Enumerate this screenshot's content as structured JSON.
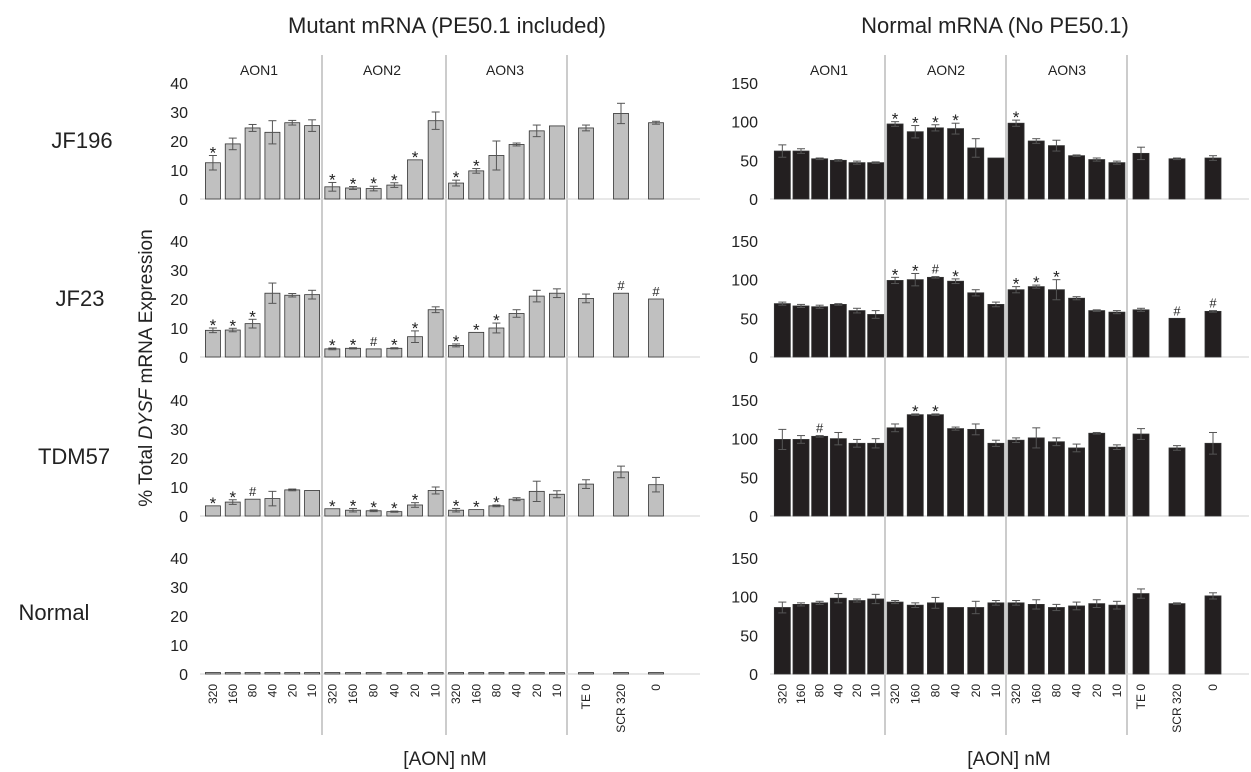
{
  "titles": {
    "left": "Mutant mRNA (PE50.1 included)",
    "right": "Normal mRNA (No PE50.1)"
  },
  "ylabel": {
    "prefix": "% Total ",
    "italic": "DYSF",
    "suffix": " mRNA Expression"
  },
  "xlabel": "[AON] nM",
  "row_labels": [
    "JF196",
    "JF23",
    "TDM57",
    "Normal"
  ],
  "group_labels": [
    "AON1",
    "AON2",
    "AON3",
    ""
  ],
  "x_ticks": {
    "aon": [
      "320",
      "160",
      "80",
      "40",
      "20",
      "10"
    ],
    "controls": [
      "TE 0",
      "SCR 320",
      "0"
    ]
  },
  "colors": {
    "mutant": "#c0c0c0",
    "normal": "#231f20",
    "axis": "#d9d9d9",
    "divider": "#999999"
  },
  "chart_data": [
    {
      "type": "bar",
      "title": "Mutant mRNA (PE50.1 included)",
      "series_color": "#c0c0c0",
      "ylim": [
        0,
        40
      ],
      "yticks": [
        0,
        10,
        20,
        30,
        40
      ],
      "rows": [
        {
          "label": "JF196",
          "groups": [
            {
              "label": "AON1",
              "values": [
                12.5,
                19,
                24.5,
                23,
                26.3,
                25.3
              ],
              "errors": [
                2.5,
                2,
                1.2,
                4,
                0.8,
                2
              ],
              "marks": [
                "*",
                "",
                "",
                "",
                "",
                ""
              ]
            },
            {
              "label": "AON2",
              "values": [
                4.2,
                3.8,
                3.6,
                4.8,
                13.5,
                27
              ],
              "errors": [
                1.5,
                0.5,
                0.8,
                0.8,
                0,
                3
              ],
              "marks": [
                "*",
                "*",
                "*",
                "*",
                "*",
                ""
              ]
            },
            {
              "label": "AON3",
              "values": [
                5.5,
                9.7,
                15,
                18.8,
                23.5,
                25.2
              ],
              "errors": [
                1,
                0.8,
                5,
                0.5,
                2,
                0
              ],
              "marks": [
                "*",
                "*",
                "",
                "",
                "",
                ""
              ]
            },
            {
              "label": "",
              "values": [
                24.5,
                29.5,
                26.3
              ],
              "errors": [
                1,
                3.5,
                0.5
              ],
              "marks": [
                "",
                "",
                ""
              ]
            }
          ]
        },
        {
          "label": "JF23",
          "groups": [
            {
              "label": "AON1",
              "values": [
                9.2,
                9.3,
                11.5,
                22,
                21.3,
                21.5
              ],
              "errors": [
                0.8,
                0.6,
                1.5,
                3.5,
                0.6,
                1.5
              ],
              "marks": [
                "*",
                "*",
                "*",
                "",
                "",
                ""
              ]
            },
            {
              "label": "AON2",
              "values": [
                2.8,
                3,
                2.8,
                3,
                7,
                16.3
              ],
              "errors": [
                0.3,
                0.2,
                0,
                0.2,
                2,
                1
              ],
              "marks": [
                "*",
                "*",
                "#",
                "*",
                "*",
                ""
              ]
            },
            {
              "label": "AON3",
              "values": [
                4,
                8.5,
                10,
                15,
                21,
                22
              ],
              "errors": [
                0.5,
                0,
                1.7,
                1.3,
                2,
                1.5
              ],
              "marks": [
                "*",
                "*",
                "*",
                "",
                "",
                ""
              ]
            },
            {
              "label": "",
              "values": [
                20.2,
                22,
                20
              ],
              "errors": [
                1.5,
                0,
                0
              ],
              "marks": [
                "",
                "#",
                "#"
              ]
            }
          ]
        },
        {
          "label": "TDM57",
          "groups": [
            {
              "label": "AON1",
              "values": [
                3.5,
                4.8,
                5.8,
                6,
                9,
                8.8
              ],
              "errors": [
                0,
                0.8,
                0,
                2.5,
                0.3,
                0
              ],
              "marks": [
                "*",
                "*",
                "#",
                "",
                "",
                ""
              ]
            },
            {
              "label": "AON2",
              "values": [
                2.5,
                2,
                1.8,
                1.5,
                3.8,
                8.8
              ],
              "errors": [
                0,
                0.6,
                0.3,
                0.2,
                0.8,
                1.2
              ],
              "marks": [
                "*",
                "*",
                "*",
                "*",
                "*",
                ""
              ]
            },
            {
              "label": "AON3",
              "values": [
                2,
                2.2,
                3.5,
                5.8,
                8.5,
                7.5
              ],
              "errors": [
                0.6,
                0,
                0.3,
                0.5,
                3.5,
                1.2
              ],
              "marks": [
                "*",
                "*",
                "*",
                "",
                "",
                ""
              ]
            },
            {
              "label": "",
              "values": [
                11,
                15.2,
                10.8
              ],
              "errors": [
                1.5,
                2,
                2.5
              ],
              "marks": [
                "",
                "",
                ""
              ]
            }
          ]
        },
        {
          "label": "Normal",
          "groups": [
            {
              "label": "AON1",
              "values": [
                0.4,
                0.4,
                0.4,
                0.4,
                0.4,
                0.4
              ],
              "errors": [
                0,
                0,
                0,
                0,
                0,
                0
              ],
              "marks": [
                "",
                "",
                "",
                "",
                "",
                ""
              ]
            },
            {
              "label": "AON2",
              "values": [
                0.4,
                0.4,
                0.4,
                0.4,
                0.4,
                0.4
              ],
              "errors": [
                0,
                0,
                0,
                0,
                0,
                0
              ],
              "marks": [
                "",
                "",
                "",
                "",
                "",
                ""
              ]
            },
            {
              "label": "AON3",
              "values": [
                0.4,
                0.4,
                0.4,
                0.4,
                0.4,
                0.4
              ],
              "errors": [
                0,
                0,
                0,
                0,
                0,
                0
              ],
              "marks": [
                "",
                "",
                "",
                "",
                "",
                ""
              ]
            },
            {
              "label": "",
              "values": [
                0.4,
                0.4,
                0.4
              ],
              "errors": [
                0,
                0,
                0
              ],
              "marks": [
                "",
                "",
                ""
              ]
            }
          ]
        }
      ]
    },
    {
      "type": "bar",
      "title": "Normal mRNA (No PE50.1)",
      "series_color": "#231f20",
      "ylim": [
        0,
        150
      ],
      "yticks": [
        0,
        50,
        100,
        150
      ],
      "rows": [
        {
          "label": "JF196",
          "groups": [
            {
              "label": "AON1",
              "values": [
                62,
                62,
                52,
                50,
                47,
                47
              ],
              "errors": [
                8,
                3,
                1,
                1,
                2,
                1
              ],
              "marks": [
                "",
                "",
                "",
                "",
                "",
                ""
              ]
            },
            {
              "label": "AON2",
              "values": [
                97,
                87,
                92,
                91,
                66,
                53
              ],
              "errors": [
                3,
                8,
                4,
                7,
                12,
                0
              ],
              "marks": [
                "*",
                "*",
                "*",
                "*",
                "",
                ""
              ]
            },
            {
              "label": "AON3",
              "values": [
                98,
                75,
                69,
                56,
                51,
                47
              ],
              "errors": [
                4,
                3,
                7,
                1,
                2,
                2
              ],
              "marks": [
                "*",
                "",
                "",
                "",
                "",
                ""
              ]
            },
            {
              "label": "",
              "values": [
                59,
                52,
                53
              ],
              "errors": [
                8,
                1,
                3
              ],
              "marks": [
                "",
                "",
                ""
              ]
            }
          ]
        },
        {
          "label": "JF23",
          "groups": [
            {
              "label": "AON1",
              "values": [
                69,
                66,
                65,
                68,
                60,
                55
              ],
              "errors": [
                2,
                2,
                2,
                1,
                3,
                5
              ],
              "marks": [
                "",
                "",
                "",
                "",
                "",
                ""
              ]
            },
            {
              "label": "AON2",
              "values": [
                99,
                100,
                103,
                98,
                83,
                68
              ],
              "errors": [
                4,
                8,
                1,
                3,
                4,
                3
              ],
              "marks": [
                "*",
                "*",
                "#",
                "*",
                "",
                ""
              ]
            },
            {
              "label": "AON3",
              "values": [
                87,
                91,
                87,
                76,
                60,
                58
              ],
              "errors": [
                4,
                2,
                13,
                2,
                1,
                2
              ],
              "marks": [
                "*",
                "*",
                "*",
                "",
                "",
                ""
              ]
            },
            {
              "label": "",
              "values": [
                61,
                50,
                59
              ],
              "errors": [
                2,
                0,
                1
              ],
              "marks": [
                "",
                "#",
                "#"
              ]
            }
          ]
        },
        {
          "label": "TDM57",
          "groups": [
            {
              "label": "AON1",
              "values": [
                99,
                99,
                103,
                100,
                94,
                94
              ],
              "errors": [
                13,
                5,
                1,
                8,
                5,
                6
              ],
              "marks": [
                "",
                "",
                "#",
                "",
                "",
                ""
              ]
            },
            {
              "label": "AON2",
              "values": [
                114,
                131,
                131,
                113,
                112,
                94
              ],
              "errors": [
                5,
                1,
                1,
                2,
                7,
                4
              ],
              "marks": [
                "",
                "*",
                "*",
                "",
                "",
                ""
              ]
            },
            {
              "label": "AON3",
              "values": [
                98,
                101,
                96,
                88,
                107,
                89
              ],
              "errors": [
                3,
                13,
                5,
                5,
                1,
                3
              ],
              "marks": [
                "",
                "",
                "",
                "",
                "",
                ""
              ]
            },
            {
              "label": "",
              "values": [
                106,
                88,
                94
              ],
              "errors": [
                7,
                3,
                14
              ],
              "marks": [
                "",
                "",
                ""
              ]
            }
          ]
        },
        {
          "label": "Normal",
          "groups": [
            {
              "label": "AON1",
              "values": [
                86,
                90,
                92,
                98,
                95,
                97
              ],
              "errors": [
                7,
                2,
                2,
                6,
                2,
                6
              ],
              "marks": [
                "",
                "",
                "",
                "",
                "",
                ""
              ]
            },
            {
              "label": "AON2",
              "values": [
                93,
                89,
                92,
                86,
                86,
                92
              ],
              "errors": [
                2,
                3,
                7,
                0,
                8,
                3
              ],
              "marks": [
                "",
                "",
                "",
                "",
                "",
                ""
              ]
            },
            {
              "label": "AON3",
              "values": [
                92,
                90,
                86,
                88,
                91,
                89
              ],
              "errors": [
                3,
                6,
                4,
                5,
                5,
                5
              ],
              "marks": [
                "",
                "",
                "",
                "",
                "",
                ""
              ]
            },
            {
              "label": "",
              "values": [
                104,
                91,
                101
              ],
              "errors": [
                6,
                1,
                4
              ],
              "marks": [
                "",
                "",
                ""
              ]
            }
          ]
        }
      ]
    }
  ]
}
